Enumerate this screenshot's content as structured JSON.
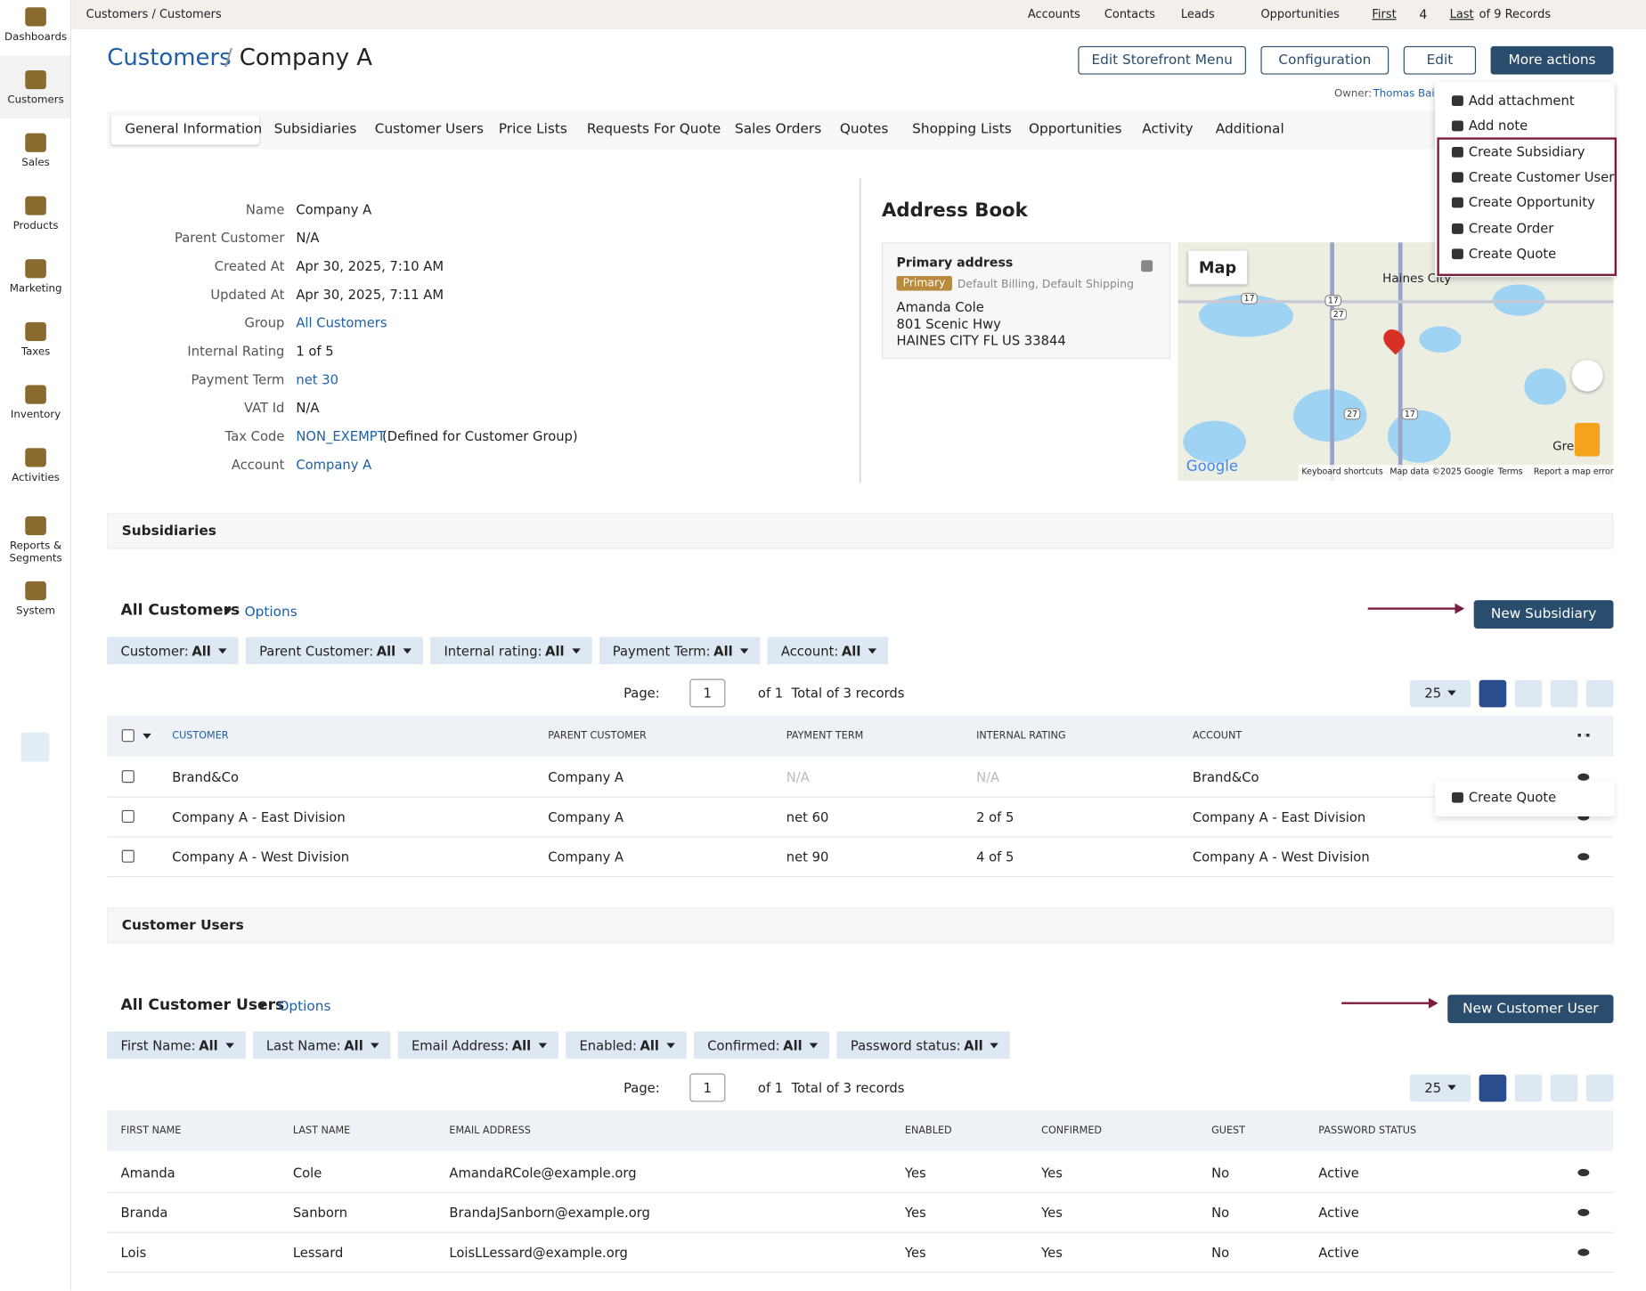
{
  "sidebar": [
    "Dashboards",
    "Customers",
    "Sales",
    "Products",
    "Marketing",
    "Taxes",
    "Inventory",
    "Activities",
    "Reports & Segments",
    "System"
  ],
  "topbar": {
    "breadcrumb": "Customers / Customers",
    "pins": [
      "Accounts",
      "Contacts",
      "Leads",
      "Opportunities"
    ],
    "first": "First",
    "current": "4",
    "last": "Last",
    "total": "of 9 Records"
  },
  "header": {
    "crumb": "Customers",
    "separator": "/",
    "title": "Company A",
    "buttons": [
      "Edit Storefront Menu",
      "Configuration",
      "Edit",
      "More actions"
    ],
    "owner_label": "Owner:",
    "owner": "Thomas Bain"
  },
  "dropdown": {
    "items": [
      "Add attachment",
      "Add note",
      "Create Subsidiary",
      "Create Customer User",
      "Create Opportunity",
      "Create Order",
      "Create Quote"
    ],
    "ghost": "Create Quote"
  },
  "tabs": [
    "General Information",
    "Subsidiaries",
    "Customer Users",
    "Price Lists",
    "Requests For Quote",
    "Sales Orders",
    "Quotes",
    "Shopping Lists",
    "Opportunities",
    "Activity",
    "Additional"
  ],
  "info": [
    {
      "label": "Name",
      "value": "Company A"
    },
    {
      "label": "Parent Customer",
      "value": "N/A"
    },
    {
      "label": "Created At",
      "value": "Apr 30, 2025, 7:10 AM"
    },
    {
      "label": "Updated At",
      "value": "Apr 30, 2025, 7:11 AM"
    },
    {
      "label": "Group",
      "value": "All Customers",
      "link": true
    },
    {
      "label": "Internal Rating",
      "value": "1 of 5"
    },
    {
      "label": "Payment Term",
      "value": "net 30",
      "link": true
    },
    {
      "label": "VAT Id",
      "value": "N/A"
    },
    {
      "label": "Tax Code",
      "value": "NON_EXEMPT",
      "link": true,
      "note": "(Defined for Customer Group)"
    },
    {
      "label": "Account",
      "value": "Company A",
      "link": true
    }
  ],
  "address_book": {
    "title": "Address Book",
    "card_title": "Primary address",
    "badge": "Primary",
    "types": "Default Billing, Default Shipping",
    "lines": [
      "Amanda Cole",
      "801 Scenic Hwy",
      "HAINES CITY FL US 33844"
    ],
    "map": {
      "button": "Map",
      "city": "Haines City",
      "city2": "Gre",
      "logo": "Google",
      "roads": [
        "17",
        "17",
        "27",
        "27",
        "17"
      ],
      "footer": [
        "Keyboard shortcuts",
        "Map data ©2025 Google",
        "Terms",
        "Report a map error"
      ]
    }
  },
  "grids": [
    {
      "section": "Subsidiaries",
      "view": "All Customers",
      "options": "Options",
      "button": "New Subsidiary",
      "filters": [
        {
          "label": "Customer:",
          "value": "All"
        },
        {
          "label": "Parent Customer:",
          "value": "All"
        },
        {
          "label": "Internal rating:",
          "value": "All"
        },
        {
          "label": "Payment Term:",
          "value": "All"
        },
        {
          "label": "Account:",
          "value": "All"
        }
      ],
      "pager": {
        "page_label": "Page:",
        "page": "1",
        "of": "of 1",
        "total": "Total of 3 records",
        "per_page": "25"
      },
      "columns": [
        "CUSTOMER",
        "PARENT CUSTOMER",
        "PAYMENT TERM",
        "INTERNAL RATING",
        "ACCOUNT"
      ],
      "rows": [
        [
          "Brand&Co",
          "Company A",
          "N/A",
          "N/A",
          "Brand&Co"
        ],
        [
          "Company A - East Division",
          "Company A",
          "net 60",
          "2 of 5",
          "Company A - East Division"
        ],
        [
          "Company A - West Division",
          "Company A",
          "net 90",
          "4 of 5",
          "Company A - West Division"
        ]
      ]
    },
    {
      "section": "Customer Users",
      "view": "All Customer Users",
      "options": "Options",
      "button": "New Customer User",
      "filters": [
        {
          "label": "First Name:",
          "value": "All"
        },
        {
          "label": "Last Name:",
          "value": "All"
        },
        {
          "label": "Email Address:",
          "value": "All"
        },
        {
          "label": "Enabled:",
          "value": "All"
        },
        {
          "label": "Confirmed:",
          "value": "All"
        },
        {
          "label": "Password status:",
          "value": "All"
        }
      ],
      "pager": {
        "page_label": "Page:",
        "page": "1",
        "of": "of 1",
        "total": "Total of 3 records",
        "per_page": "25"
      },
      "columns": [
        "FIRST NAME",
        "LAST NAME",
        "EMAIL ADDRESS",
        "ENABLED",
        "CONFIRMED",
        "GUEST",
        "PASSWORD STATUS"
      ],
      "rows": [
        [
          "Amanda",
          "Cole",
          "AmandaRCole@example.org",
          "Yes",
          "Yes",
          "No",
          "Active"
        ],
        [
          "Branda",
          "Sanborn",
          "BrandaJSanborn@example.org",
          "Yes",
          "Yes",
          "No",
          "Active"
        ],
        [
          "Lois",
          "Lessard",
          "LoisLLessard@example.org",
          "Yes",
          "Yes",
          "No",
          "Active"
        ]
      ]
    }
  ]
}
